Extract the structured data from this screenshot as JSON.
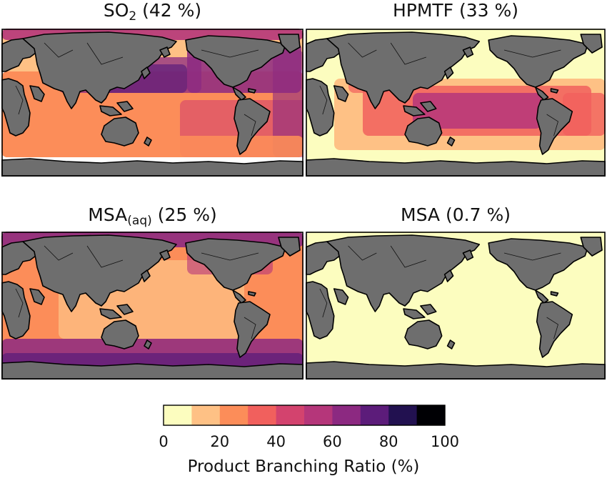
{
  "panels": [
    {
      "key": "so2",
      "title_main": "SO",
      "title_sub": "2",
      "title_suffix": " (42 %)"
    },
    {
      "key": "hpmtf",
      "title_main": "HPMTF (33 %)",
      "title_sub": "",
      "title_suffix": ""
    },
    {
      "key": "msaaq",
      "title_main": "MSA",
      "title_sub": "(aq)",
      "title_suffix": " (25 %)"
    },
    {
      "key": "msa",
      "title_main": "MSA (0.7 %)",
      "title_sub": "",
      "title_suffix": ""
    }
  ],
  "colorbar": {
    "label": "Product Branching Ratio (%)",
    "ticks": [
      "0",
      "20",
      "40",
      "60",
      "80",
      "100"
    ],
    "range": [
      0,
      100
    ],
    "bins": 10,
    "colors": [
      "#fcfdbf",
      "#fec185",
      "#fc8d59",
      "#f1605d",
      "#d3436e",
      "#b5367a",
      "#8c2981",
      "#5c1c7a",
      "#221150",
      "#000004"
    ]
  },
  "land_color": "#6e6e6e"
}
